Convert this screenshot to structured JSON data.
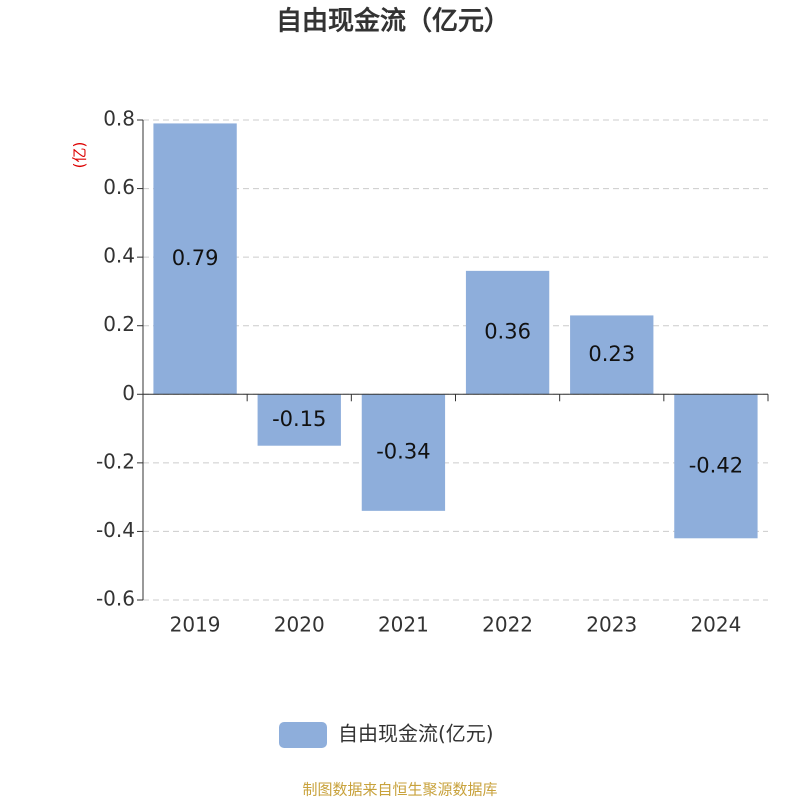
{
  "chart_data": {
    "type": "bar",
    "title": "自由现金流（亿元）",
    "y_axis_label": "(亿)",
    "categories": [
      "2019",
      "2020",
      "2021",
      "2022",
      "2023",
      "2024"
    ],
    "series": [
      {
        "name": "自由现金流(亿元)",
        "color": "#8eaedb",
        "values": [
          0.79,
          -0.15,
          -0.34,
          0.36,
          0.23,
          -0.42
        ]
      }
    ],
    "ylim": [
      -0.6,
      0.8
    ],
    "yticks": [
      -0.6,
      -0.4,
      -0.2,
      0,
      0.2,
      0.4,
      0.6,
      0.8
    ],
    "grid": true,
    "source": "制图数据来自恒生聚源数据库"
  }
}
